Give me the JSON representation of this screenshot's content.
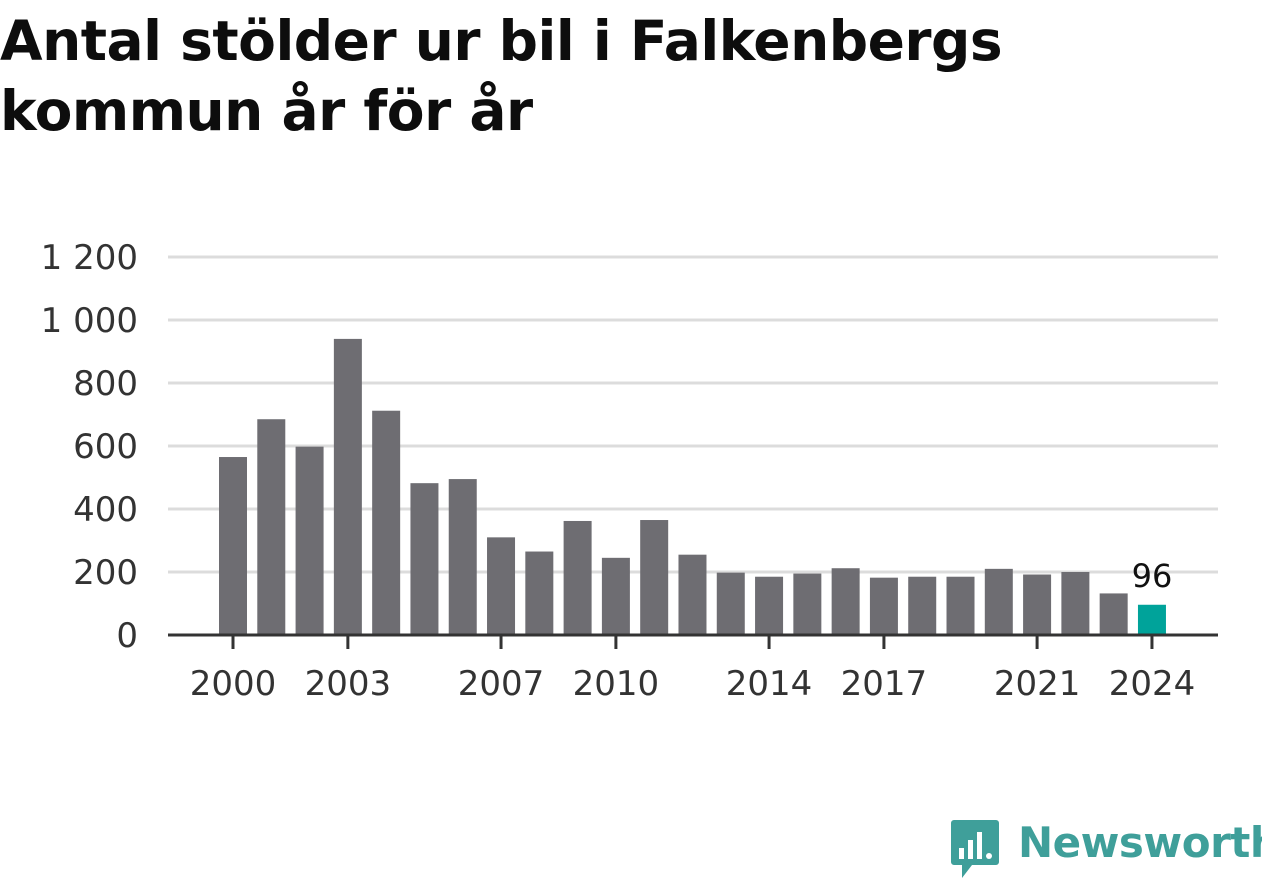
{
  "colors": {
    "bar": "#6e6d72",
    "highlight": "#00a39a",
    "grid": "#dcdcdc",
    "axis": "#333333",
    "brand": "#3f9f9a"
  },
  "brand": {
    "name": "Newsworthy",
    "icon": "bar-chart-speech-bubble-icon"
  },
  "chart_data": {
    "type": "bar",
    "title": "Antal stölder ur bil i Falkenbergs kommun år för år",
    "xlabel": "",
    "ylabel": "",
    "ylim": [
      0,
      1200
    ],
    "yticks": [
      0,
      200,
      400,
      600,
      800,
      1000,
      1200
    ],
    "ytick_labels": [
      "0",
      "200",
      "400",
      "600",
      "800",
      "1 000",
      "1 200"
    ],
    "xtick_labels": [
      "2000",
      "2003",
      "2007",
      "2010",
      "2014",
      "2017",
      "2021",
      "2024"
    ],
    "grid": true,
    "categories": [
      "2000",
      "2001",
      "2002",
      "2003",
      "2004",
      "2005",
      "2006",
      "2007",
      "2008",
      "2009",
      "2010",
      "2011",
      "2012",
      "2013",
      "2014",
      "2015",
      "2016",
      "2017",
      "2018",
      "2019",
      "2020",
      "2021",
      "2022",
      "2023",
      "2024"
    ],
    "values": [
      565,
      685,
      598,
      940,
      712,
      482,
      495,
      310,
      265,
      362,
      245,
      365,
      255,
      198,
      185,
      195,
      212,
      182,
      185,
      185,
      210,
      192,
      200,
      132,
      96
    ],
    "highlight_category": "2024",
    "annotations": [
      {
        "category": "2024",
        "text": "96"
      }
    ]
  }
}
